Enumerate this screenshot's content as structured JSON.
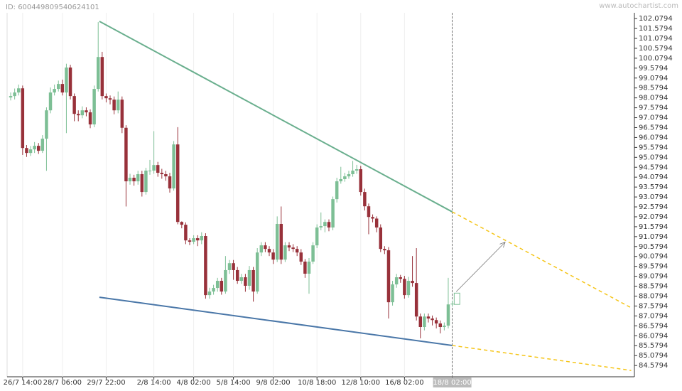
{
  "header": {
    "id_text": "ID: 600449809540624101",
    "brand": "www.autochartist.com"
  },
  "chart_data": {
    "type": "candlestick",
    "categories": [
      null,
      null,
      null,
      "26/7 14:00",
      null,
      null,
      null,
      null,
      null,
      null,
      null,
      null,
      null,
      "28/7 06:00",
      null,
      null,
      null,
      null,
      null,
      null,
      null,
      null,
      null,
      null,
      "29/7 22:00",
      null,
      null,
      null,
      null,
      null,
      null,
      null,
      null,
      null,
      null,
      null,
      "2/8 14:00",
      null,
      null,
      null,
      null,
      null,
      null,
      null,
      null,
      null,
      "4/8 02:00",
      null,
      null,
      null,
      null,
      null,
      null,
      null,
      null,
      null,
      "5/8 14:00",
      null,
      null,
      null,
      null,
      null,
      null,
      null,
      null,
      null,
      "9/8 02:00",
      null,
      null,
      null,
      null,
      null,
      null,
      null,
      null,
      null,
      null,
      "10/8 18:00",
      null,
      null,
      null,
      null,
      null,
      null,
      null,
      null,
      null,
      null,
      "12/8 10:00",
      null,
      null,
      null,
      null,
      null,
      null,
      null,
      null,
      null,
      null,
      "16/8 02:00",
      null,
      null,
      null,
      null,
      null,
      null,
      null,
      null,
      null,
      null,
      null,
      "18/8 02:00"
    ],
    "open": [
      98.1,
      98.17,
      98.35,
      98.56,
      95.55,
      95.3,
      95.48,
      95.66,
      95.41,
      96.02,
      97.45,
      98.35,
      98.53,
      98.78,
      98.35,
      99.61,
      98.17,
      97.27,
      97.2,
      97.45,
      97.35,
      96.74,
      98.53,
      100.14,
      98.17,
      98.06,
      97.99,
      97.45,
      97.99,
      96.57,
      93.87,
      94.05,
      93.87,
      94.23,
      93.33,
      94.41,
      94.41,
      94.69,
      94.3,
      94.23,
      94.12,
      93.51,
      95.73,
      91.82,
      91.68,
      90.89,
      90.82,
      91.0,
      90.89,
      91.11,
      88.13,
      88.31,
      88.49,
      88.85,
      88.31,
      89.39,
      89.74,
      89.39,
      88.85,
      89.03,
      88.6,
      89.39,
      88.31,
      90.28,
      90.64,
      90.46,
      90.28,
      89.92,
      91.72,
      89.92,
      90.64,
      90.53,
      90.46,
      90.28,
      89.82,
      89.21,
      89.82,
      90.64,
      91.54,
      91.61,
      91.82,
      91.54,
      92.97,
      93.87,
      93.98,
      94.12,
      94.23,
      94.41,
      94.48,
      93.33,
      92.61,
      92.07,
      91.99,
      91.54,
      90.46,
      90.39,
      87.77,
      88.67,
      89.03,
      88.95,
      88.13,
      88.85,
      88.74,
      87.05,
      86.52,
      87.05,
      86.95,
      86.87,
      86.7,
      86.52,
      86.59,
      87.66
    ],
    "high": [
      98.35,
      98.55,
      98.75,
      98.7,
      95.7,
      95.65,
      95.85,
      95.8,
      96.2,
      97.6,
      98.6,
      98.75,
      98.95,
      99.0,
      99.8,
      99.75,
      98.3,
      97.45,
      97.65,
      97.6,
      97.5,
      98.7,
      101.9,
      100.4,
      98.3,
      98.2,
      98.15,
      98.4,
      98.15,
      96.7,
      94.25,
      94.2,
      94.4,
      94.4,
      94.55,
      94.95,
      96.4,
      94.85,
      94.5,
      94.4,
      94.3,
      95.9,
      96.6,
      91.85,
      91.8,
      91.0,
      91.15,
      91.15,
      91.3,
      91.25,
      88.5,
      88.65,
      89.0,
      89.0,
      90.1,
      89.9,
      89.9,
      89.55,
      89.2,
      89.2,
      89.6,
      89.55,
      90.5,
      90.8,
      90.8,
      90.6,
      90.45,
      92.1,
      92.6,
      90.8,
      90.8,
      90.7,
      90.6,
      90.45,
      89.95,
      90.0,
      90.8,
      91.7,
      92.3,
      91.95,
      91.95,
      93.1,
      94.05,
      94.6,
      94.3,
      94.4,
      94.9,
      94.7,
      94.65,
      93.5,
      92.75,
      92.2,
      92.1,
      91.7,
      90.6,
      90.55,
      88.85,
      89.2,
      89.15,
      89.1,
      89.05,
      90.1,
      90.5,
      87.2,
      87.2,
      87.2,
      87.1,
      87.0,
      86.85,
      86.75,
      89.0,
      87.85
    ],
    "low": [
      97.95,
      98.0,
      98.2,
      95.2,
      95.1,
      95.15,
      95.3,
      95.25,
      95.3,
      94.4,
      97.3,
      98.2,
      98.4,
      98.2,
      96.3,
      98.0,
      96.9,
      96.9,
      97.05,
      97.15,
      96.55,
      96.6,
      98.4,
      98.0,
      97.85,
      97.75,
      97.25,
      97.3,
      96.3,
      92.6,
      93.7,
      93.65,
      93.7,
      93.1,
      93.2,
      94.2,
      94.25,
      94.1,
      94.0,
      93.9,
      93.3,
      93.4,
      91.7,
      91.5,
      90.7,
      90.65,
      90.7,
      90.6,
      90.7,
      87.95,
      87.95,
      88.15,
      88.3,
      88.15,
      88.2,
      89.2,
      88.9,
      88.7,
      88.7,
      88.3,
      88.4,
      87.8,
      88.2,
      90.1,
      90.3,
      90.1,
      89.7,
      89.8,
      89.7,
      89.8,
      90.35,
      90.3,
      90.1,
      89.65,
      89.0,
      88.2,
      89.7,
      90.5,
      91.4,
      91.3,
      91.35,
      91.4,
      92.8,
      93.75,
      93.85,
      94.0,
      94.1,
      94.25,
      93.15,
      92.4,
      91.2,
      91.8,
      91.3,
      90.3,
      90.2,
      86.95,
      87.6,
      88.5,
      88.75,
      87.95,
      88.0,
      88.55,
      86.85,
      85.95,
      86.35,
      86.75,
      86.6,
      86.45,
      86.2,
      86.35,
      86.45,
      87.55
    ],
    "close": [
      98.17,
      98.35,
      98.56,
      95.55,
      95.3,
      95.48,
      95.66,
      95.41,
      96.02,
      97.45,
      98.35,
      98.53,
      98.78,
      98.35,
      99.61,
      98.17,
      97.27,
      97.2,
      97.45,
      97.35,
      96.74,
      98.53,
      100.14,
      98.17,
      98.06,
      97.99,
      97.45,
      97.99,
      96.57,
      93.87,
      94.05,
      93.87,
      94.23,
      93.33,
      94.41,
      94.41,
      94.69,
      94.3,
      94.23,
      94.12,
      93.51,
      95.73,
      91.82,
      91.68,
      90.89,
      90.82,
      91.0,
      90.89,
      91.11,
      88.13,
      88.31,
      88.49,
      88.85,
      88.31,
      89.39,
      89.74,
      89.39,
      88.85,
      89.03,
      88.6,
      89.39,
      88.31,
      90.28,
      90.64,
      90.46,
      90.28,
      89.92,
      91.72,
      89.92,
      90.64,
      90.53,
      90.46,
      90.28,
      89.82,
      89.21,
      89.82,
      90.64,
      91.54,
      91.61,
      91.82,
      91.54,
      92.97,
      93.87,
      93.98,
      94.12,
      94.23,
      94.41,
      94.48,
      93.33,
      92.61,
      92.07,
      91.99,
      91.54,
      90.46,
      90.39,
      87.77,
      88.67,
      89.03,
      88.95,
      88.13,
      88.85,
      88.74,
      87.05,
      86.52,
      87.05,
      86.95,
      86.87,
      86.7,
      86.52,
      86.59,
      87.66,
      87.7
    ],
    "up_color": "#7dbf95",
    "down_color": "#98313a",
    "xlim": [
      -0.9,
      156.8
    ],
    "ylim": [
      84.01,
      102.37
    ],
    "yticks": [
      84.5794,
      85.0794,
      85.5794,
      86.0794,
      86.5794,
      87.0794,
      87.5794,
      88.0794,
      88.5794,
      89.0794,
      89.5794,
      90.0794,
      90.5794,
      91.0794,
      91.5794,
      92.0794,
      92.5794,
      93.0794,
      93.5794,
      94.0794,
      94.5794,
      95.0794,
      95.5794,
      96.0794,
      96.5794,
      97.0794,
      97.5794,
      98.0794,
      98.5794,
      99.0794,
      99.5794,
      100.0794,
      100.5794,
      101.0794,
      101.5794,
      102.0794
    ],
    "grid": true,
    "highlight_index": 111,
    "trendlines": [
      {
        "color": "#6aaf8e",
        "x": [
          22.3,
          111
        ],
        "y": [
          101.94,
          92.33
        ],
        "projection": {
          "color": "#f5c518",
          "x": [
            111,
            156
          ],
          "y": [
            92.33,
            87.49
          ]
        }
      },
      {
        "color": "#4a77a8",
        "x": [
          22.3,
          111
        ],
        "y": [
          88.02,
          85.59
        ],
        "projection": {
          "color": "#f5c518",
          "x": [
            111,
            156
          ],
          "y": [
            85.59,
            84.33
          ]
        }
      }
    ],
    "forecast_arrow": {
      "color": "#777777",
      "x": [
        112,
        124.3
      ],
      "y": [
        88.3,
        90.8
      ]
    },
    "target_box": {
      "color": "#7dbf95",
      "x": [
        111.5,
        112.9
      ],
      "y": [
        87.66,
        88.23
      ]
    }
  }
}
